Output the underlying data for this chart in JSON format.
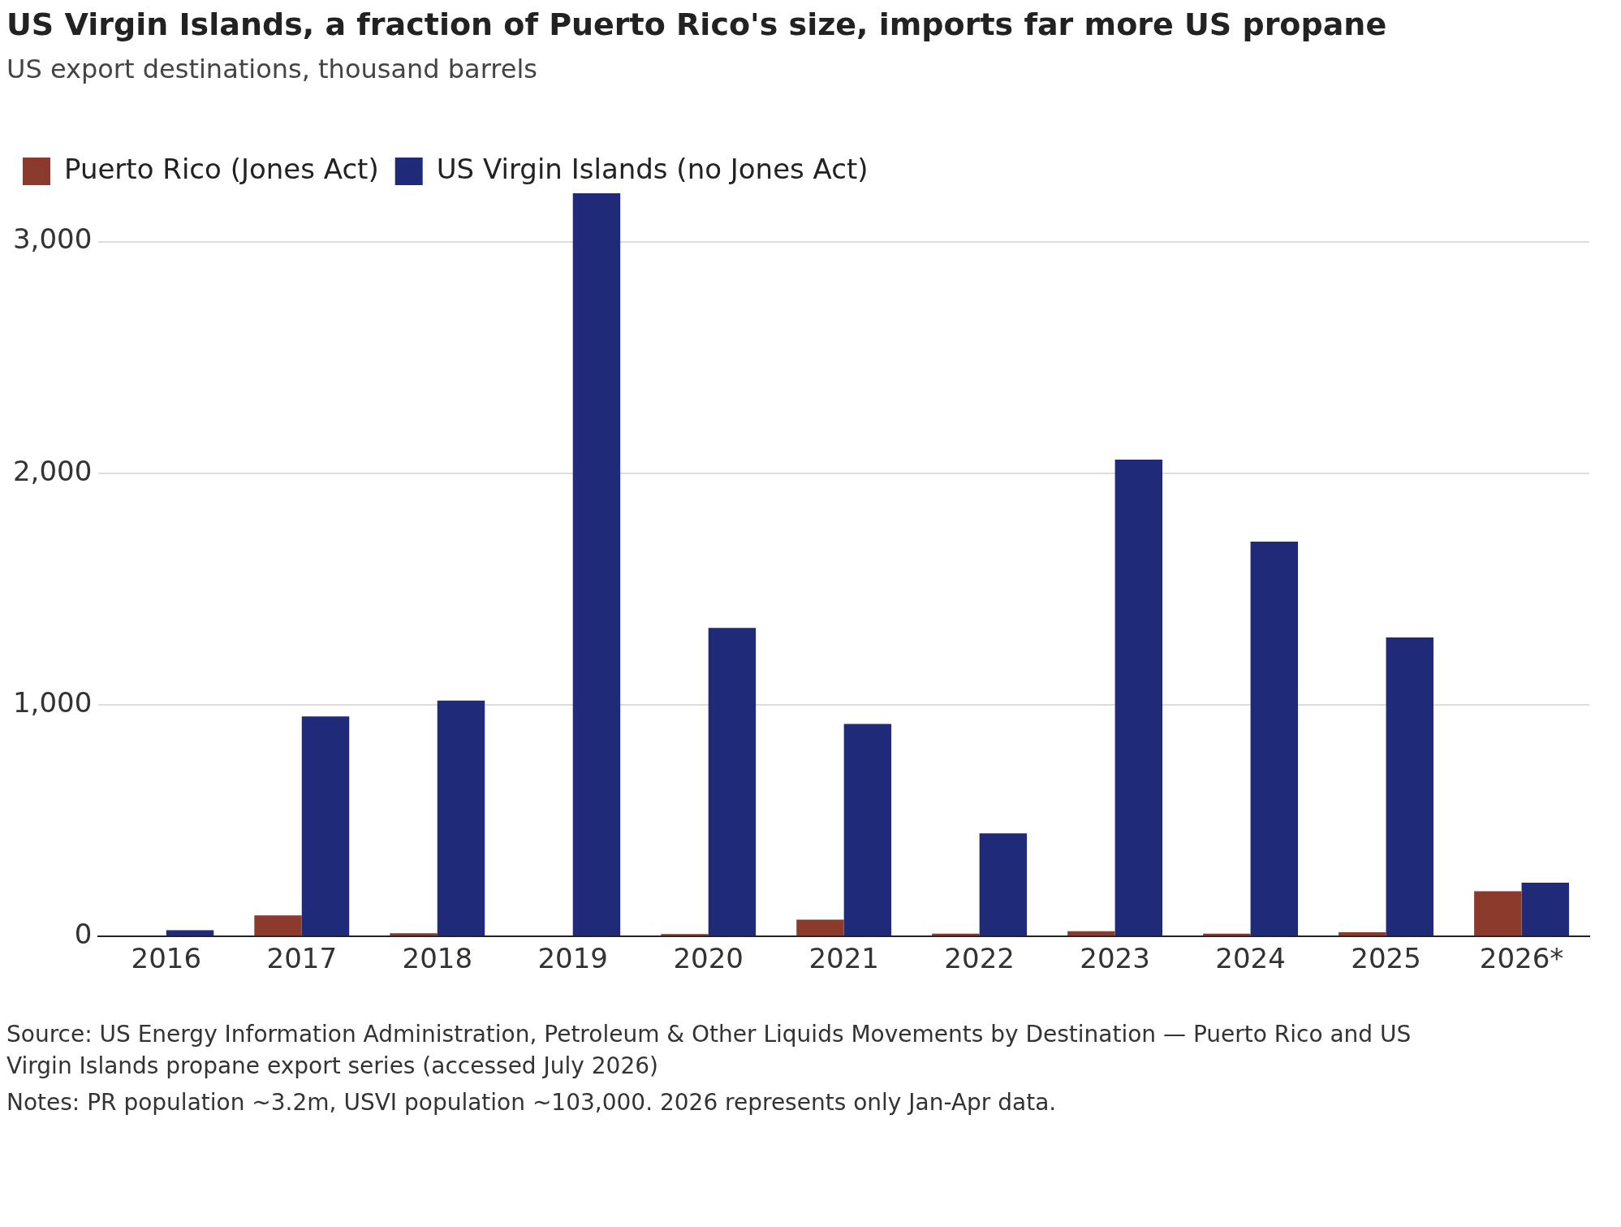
{
  "chart_data": {
    "type": "bar",
    "title": "US Virgin Islands, a fraction of Puerto Rico's size, imports far more US propane",
    "subtitle": "US export destinations, thousand barrels",
    "categories": [
      "2016",
      "2017",
      "2018",
      "2019",
      "2020",
      "2021",
      "2022",
      "2023",
      "2024",
      "2025",
      "2026*"
    ],
    "series": [
      {
        "name": "Puerto Rico (Jones Act)",
        "color": "#8b3a2b",
        "values": [
          0,
          91,
          14,
          0,
          10,
          73,
          12,
          23,
          12,
          18,
          195
        ]
      },
      {
        "name": "US Virgin Islands (no Jones Act)",
        "color": "#1f2b78",
        "values": [
          27,
          950,
          1018,
          3209,
          1332,
          918,
          445,
          2059,
          1705,
          1291,
          232
        ]
      }
    ],
    "ylim": [
      0,
      3209
    ],
    "yticks": [
      0,
      {
        "value": 1000,
        "label": "1,000"
      },
      {
        "value": 2000,
        "label": "2,000"
      },
      {
        "value": 3000,
        "label": "3,000"
      }
    ],
    "grid": "y",
    "legend": "top left",
    "annotations": [
      "Source: US Energy Information Administration, Petroleum & Other Liquids Movements by Destination — Puerto Rico and US Virgin Islands propane export series (accessed July 2026)",
      "Notes: PR population ~3.2m, USVI population ~103,000. 2026 represents only Jan-Apr data."
    ]
  }
}
